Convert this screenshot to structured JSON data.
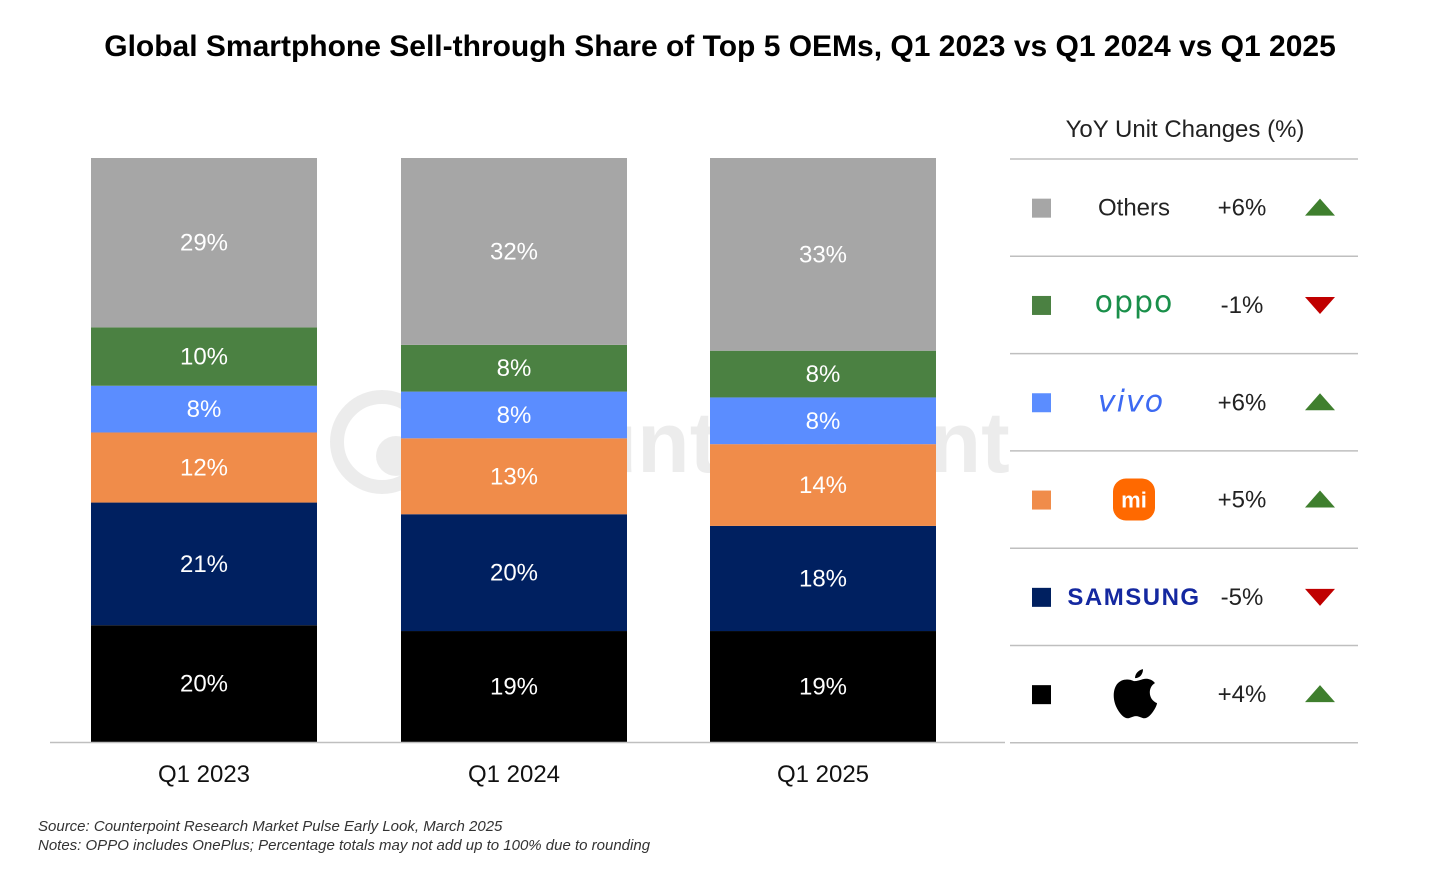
{
  "title": "Global Smartphone Sell-through Share of Top 5 OEMs, Q1 2023 vs Q1 2024 vs Q1 2025",
  "watermark": "Counterpoint",
  "source": "Source: Counterpoint Research Market Pulse Early Look, March 2025",
  "notes": "Notes: OPPO includes OnePlus; Percentage totals may not add up to 100% due to rounding",
  "colors": {
    "apple": "#000000",
    "samsung": "#002060",
    "xiaomi": "#F08C4A",
    "vivo": "#5B8DFF",
    "oppo": "#4B8142",
    "others": "#A6A6A6",
    "up": "#3F7F2E",
    "down": "#C00000"
  },
  "chart_data": {
    "type": "bar",
    "stacked": true,
    "title": "Global Smartphone Sell-through Share of Top 5 OEMs, Q1 2023 vs Q1 2024 vs Q1 2025",
    "categories": [
      "Q1 2023",
      "Q1 2024",
      "Q1 2025"
    ],
    "series": [
      {
        "key": "apple",
        "values": [
          20,
          19,
          19
        ],
        "labels": [
          "20%",
          "19%",
          "19%"
        ]
      },
      {
        "key": "samsung",
        "values": [
          21,
          20,
          18
        ],
        "labels": [
          "21%",
          "20%",
          "18%"
        ]
      },
      {
        "key": "xiaomi",
        "values": [
          12,
          13,
          14
        ],
        "labels": [
          "12%",
          "13%",
          "14%"
        ]
      },
      {
        "key": "vivo",
        "values": [
          8,
          8,
          8
        ],
        "labels": [
          "8%",
          "8%",
          "8%"
        ]
      },
      {
        "key": "oppo",
        "values": [
          10,
          8,
          8
        ],
        "labels": [
          "10%",
          "8%",
          "8%"
        ]
      },
      {
        "key": "others",
        "values": [
          29,
          32,
          33
        ],
        "labels": [
          "29%",
          "32%",
          "33%"
        ]
      }
    ],
    "ylim": [
      0,
      100
    ],
    "grid": false
  },
  "legend": {
    "title": "YoY Unit Changes (%)",
    "items": [
      {
        "key": "others",
        "name": "Others",
        "brand": "text",
        "change": "+6%",
        "direction": "up"
      },
      {
        "key": "oppo",
        "name": "oppo",
        "brand": "oppo",
        "change": "-1%",
        "direction": "down"
      },
      {
        "key": "vivo",
        "name": "vivo",
        "brand": "vivo",
        "change": "+6%",
        "direction": "up"
      },
      {
        "key": "xiaomi",
        "name": "mi",
        "brand": "xiaomi",
        "change": "+5%",
        "direction": "up"
      },
      {
        "key": "samsung",
        "name": "SAMSUNG",
        "brand": "samsung",
        "change": "-5%",
        "direction": "down"
      },
      {
        "key": "apple",
        "name": "",
        "brand": "apple",
        "change": "+4%",
        "direction": "up"
      }
    ]
  }
}
